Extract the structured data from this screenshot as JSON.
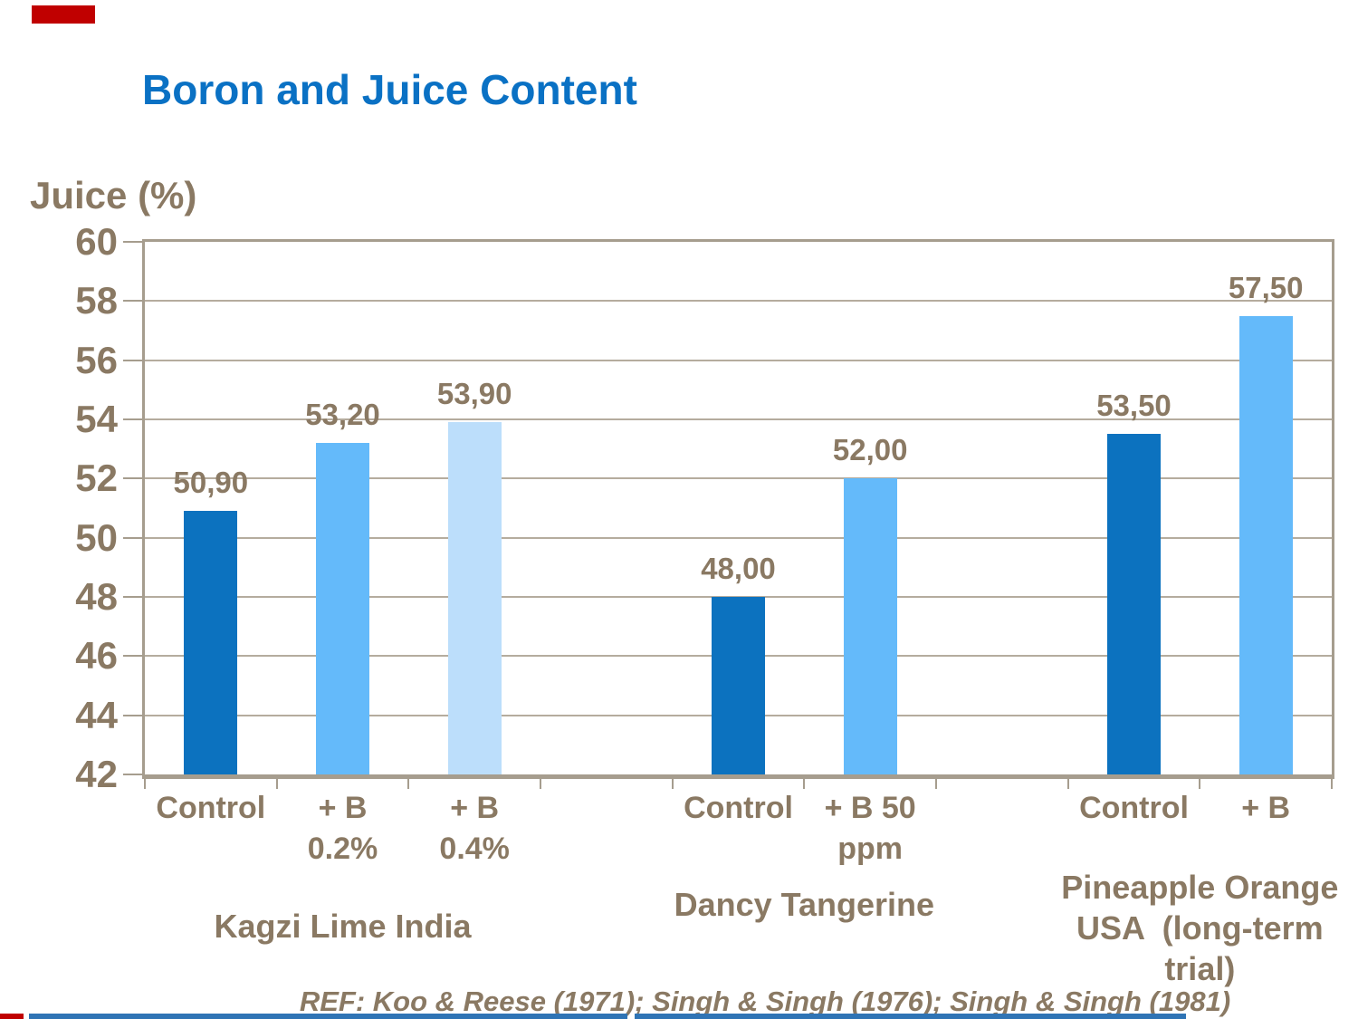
{
  "slide": {
    "title": "Boron and Juice Content",
    "ref_citation": "REF: Koo & Reese (1971); Singh & Singh (1976); Singh & Singh (1981)"
  },
  "colors": {
    "title_blue": "#0A71C4",
    "text_brown": "#8A7963",
    "grid": "#B5AC9E",
    "plot_border": "#A69D8E",
    "dark_blue": "#0C72BF",
    "medium_blue": "#64BAFA",
    "pale_blue": "#BCDEFB",
    "accent_red": "#C00000",
    "footer_blue": "#2F74B5"
  },
  "chart_data": {
    "type": "bar",
    "title": "Boron and Juice Content",
    "xlabel": "",
    "ylabel": "Juice (%)",
    "ylim": [
      42,
      60
    ],
    "ytick_step": 2,
    "yticks": [
      42,
      44,
      46,
      48,
      50,
      52,
      54,
      56,
      58,
      60
    ],
    "grid": true,
    "legend": "none",
    "slots": 9,
    "bars": [
      {
        "slot": 0,
        "group": "Kagzi Lime India",
        "category_lines": [
          "Control"
        ],
        "value": 50.9,
        "display": "50,90",
        "color_key": "dark_blue"
      },
      {
        "slot": 1,
        "group": "Kagzi Lime India",
        "category_lines": [
          "+ B",
          "0.2%"
        ],
        "value": 53.2,
        "display": "53,20",
        "color_key": "medium_blue"
      },
      {
        "slot": 2,
        "group": "Kagzi Lime India",
        "category_lines": [
          "+ B",
          "0.4%"
        ],
        "value": 53.9,
        "display": "53,90",
        "color_key": "pale_blue"
      },
      {
        "slot": 4,
        "group": "Dancy Tangerine",
        "category_lines": [
          "Control"
        ],
        "value": 48.0,
        "display": "48,00",
        "color_key": "dark_blue"
      },
      {
        "slot": 5,
        "group": "Dancy Tangerine",
        "category_lines": [
          "+ B 50",
          "ppm"
        ],
        "value": 52.0,
        "display": "52,00",
        "color_key": "medium_blue"
      },
      {
        "slot": 7,
        "group": "Pineapple Orange USA (long-term trial)",
        "category_lines": [
          "Control"
        ],
        "value": 53.5,
        "display": "53,50",
        "color_key": "dark_blue"
      },
      {
        "slot": 8,
        "group": "Pineapple Orange USA (long-term trial)",
        "category_lines": [
          "+ B"
        ],
        "value": 57.5,
        "display": "57,50",
        "color_key": "medium_blue"
      }
    ],
    "groups": [
      {
        "label": "Kagzi Lime India",
        "center_slot": 1,
        "lines": [
          "Kagzi Lime India"
        ]
      },
      {
        "label": "Dancy Tangerine",
        "center_slot": 4.5,
        "lines": [
          "Dancy Tangerine"
        ]
      },
      {
        "label": "Pineapple Orange USA (long-term trial)",
        "center_slot": 7.5,
        "lines": [
          "Pineapple Orange",
          "USA  (long-term",
          "trial)"
        ]
      }
    ]
  }
}
